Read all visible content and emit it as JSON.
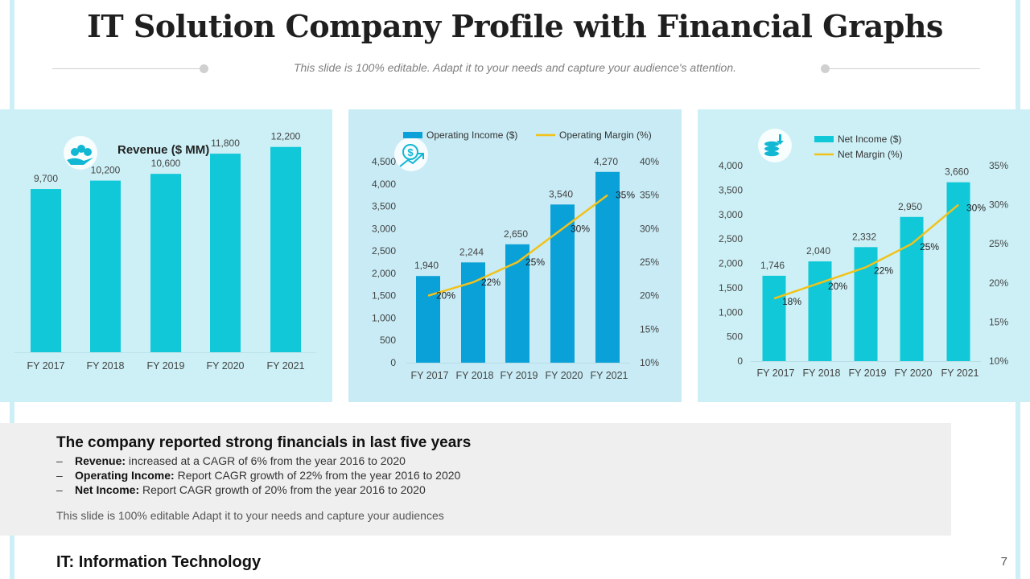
{
  "header": {
    "title": "IT Solution Company Profile with Financial Graphs",
    "subtitle": "This slide is 100% editable. Adapt it to your needs and capture your audience's attention."
  },
  "colors": {
    "cyan": "#10c8d8",
    "blue": "#0aa0d8",
    "line": "#f2c21a",
    "icon": "#12b8d3"
  },
  "chart_data": [
    {
      "type": "bar",
      "title": "Revenue ($ MM)",
      "icon": "money-hand-icon",
      "categories": [
        "FY 2017",
        "FY 2018",
        "FY 2019",
        "FY 2020",
        "FY 2021"
      ],
      "values": [
        9700,
        10200,
        10600,
        11800,
        12200
      ],
      "labels": [
        "9,700",
        "10,200",
        "10,600",
        "11,800",
        "12,200"
      ],
      "ylim": [
        0,
        13000
      ]
    },
    {
      "type": "bar",
      "icon": "dollar-growth-icon",
      "categories": [
        "FY 2017",
        "FY 2018",
        "FY 2019",
        "FY 2020",
        "FY 2021"
      ],
      "series": [
        {
          "name": "Operating Income ($)",
          "values": [
            1940,
            2244,
            2650,
            3540,
            4270
          ],
          "labels": [
            "1,940",
            "2,244",
            "2,650",
            "3,540",
            "4,270"
          ]
        },
        {
          "name": "Operating Margin (%)",
          "type": "line",
          "values": [
            20,
            22,
            25,
            30,
            35
          ],
          "labels": [
            "20%",
            "22%",
            "25%",
            "30%",
            "35%"
          ]
        }
      ],
      "ylim": [
        0,
        4500
      ],
      "yticks": [
        "0",
        "500",
        "1,000",
        "1,500",
        "2,000",
        "2,500",
        "3,000",
        "3,500",
        "4,000",
        "4,500"
      ],
      "y2lim": [
        10,
        40
      ],
      "y2ticks": [
        "10%",
        "15%",
        "20%",
        "25%",
        "30%",
        "35%",
        "40%"
      ]
    },
    {
      "type": "bar",
      "icon": "coins-stack-icon",
      "categories": [
        "FY 2017",
        "FY 2018",
        "FY 2019",
        "FY 2020",
        "FY 2021"
      ],
      "series": [
        {
          "name": "Net Income ($)",
          "values": [
            1746,
            2040,
            2332,
            2950,
            3660
          ],
          "labels": [
            "1,746",
            "2,040",
            "2,332",
            "2,950",
            "3,660"
          ]
        },
        {
          "name": "Net Margin (%)",
          "type": "line",
          "values": [
            18,
            20,
            22,
            25,
            30
          ],
          "labels": [
            "18%",
            "20%",
            "22%",
            "25%",
            "30%"
          ]
        }
      ],
      "ylim": [
        0,
        4000
      ],
      "yticks": [
        "0",
        "500",
        "1,000",
        "1,500",
        "2,000",
        "2,500",
        "3,000",
        "3,500",
        "4,000"
      ],
      "y2lim": [
        10,
        35
      ],
      "y2ticks": [
        "10%",
        "15%",
        "20%",
        "25%",
        "30%",
        "35%"
      ]
    }
  ],
  "summary": {
    "heading": "The company reported strong financials in last five years",
    "bullets": [
      {
        "dash": "–",
        "label": "Revenue:",
        "text": " increased at a CAGR of 6% from the year 2016 to 2020"
      },
      {
        "dash": "–",
        "label": "Operating Income:",
        "text": " Report CAGR growth of 22% from the year 2016 to 2020"
      },
      {
        "dash": "–",
        "label": "Net Income:",
        "text": " Report CAGR growth of 20% from the year 2016 to 2020"
      }
    ],
    "note": "This slide is 100% editable Adapt it to your needs and capture your audiences"
  },
  "footer": {
    "text": "IT: Information Technology",
    "page": "7"
  }
}
